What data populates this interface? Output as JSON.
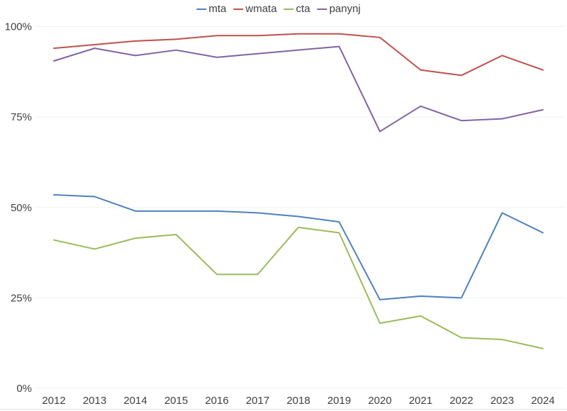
{
  "colors": {
    "mta": "#4F81BD",
    "wmata": "#C0504D",
    "cta": "#9BBB59",
    "panynj": "#8064A2",
    "gridline": "#F1F1F1",
    "bottom_border": "#E2E2E2",
    "axis_text": "#404040",
    "background": "#FFFFFF"
  },
  "chart_data": {
    "type": "line",
    "unit": "%",
    "x": [
      "2012",
      "2013",
      "2014",
      "2015",
      "2016",
      "2017",
      "2018",
      "2019",
      "2020",
      "2021",
      "2022",
      "2023",
      "2024"
    ],
    "series": [
      {
        "name": "mta",
        "values": [
          53.5,
          53,
          49,
          49,
          49,
          48.5,
          47.5,
          46,
          24.5,
          25.5,
          25,
          48.5,
          43
        ]
      },
      {
        "name": "wmata",
        "values": [
          94,
          95,
          96,
          96.5,
          97.5,
          97.5,
          98,
          98,
          97,
          88,
          86.5,
          92,
          88
        ]
      },
      {
        "name": "cta",
        "values": [
          41,
          38.5,
          41.5,
          42.5,
          31.5,
          31.5,
          44.5,
          43,
          18,
          20,
          14,
          13.5,
          11
        ]
      },
      {
        "name": "panynj",
        "values": [
          90.5,
          94,
          92,
          93.5,
          91.5,
          92.5,
          93.5,
          94.5,
          71,
          78,
          74,
          74.5,
          77
        ]
      }
    ],
    "y_ticks": [
      "0%",
      "25%",
      "50%",
      "75%",
      "100%"
    ],
    "ylim": [
      0,
      100
    ],
    "grid": true,
    "legend_position": "top-center",
    "title": "",
    "xlabel": "",
    "ylabel": ""
  }
}
